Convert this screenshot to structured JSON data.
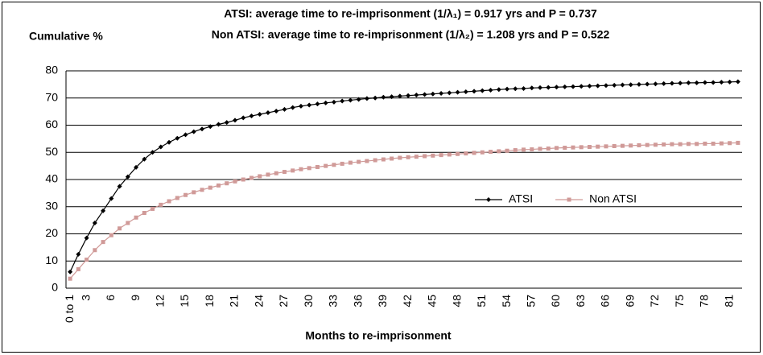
{
  "chart_data": {
    "type": "line",
    "title": [
      "ATSI: average time to re-imprisonment (1/λ₁) =  0.917 yrs and P = 0.737",
      "Non ATSI: average time to re-imprisonment (1/λ₂) =  1.208 yrs and P = 0.522"
    ],
    "y_label": "Cumulative %",
    "x_label": "Months to re-imprisonment",
    "categories": [
      "0 to 1",
      null,
      3,
      null,
      null,
      6,
      null,
      null,
      9,
      null,
      null,
      12,
      null,
      null,
      15,
      null,
      null,
      18,
      null,
      null,
      21,
      null,
      null,
      24,
      null,
      null,
      27,
      null,
      null,
      30,
      null,
      null,
      33,
      null,
      null,
      36,
      null,
      null,
      39,
      null,
      null,
      42,
      null,
      null,
      45,
      null,
      null,
      48,
      null,
      null,
      51,
      null,
      null,
      54,
      null,
      null,
      57,
      null,
      null,
      60,
      null,
      null,
      63,
      null,
      null,
      66,
      null,
      null,
      69,
      null,
      null,
      72,
      null,
      null,
      75,
      null,
      null,
      78,
      null,
      null,
      81,
      null
    ],
    "series": [
      {
        "name": "ATSI",
        "color": "#000000",
        "marker": "diamond",
        "values": [
          6,
          12.5,
          18.5,
          24,
          28.5,
          33,
          37.5,
          41,
          44.5,
          47.5,
          50,
          52,
          53.7,
          55.2,
          56.5,
          57.6,
          58.6,
          59.5,
          60.3,
          61,
          61.8,
          62.7,
          63.4,
          64,
          64.6,
          65.2,
          65.8,
          66.5,
          67,
          67.4,
          67.8,
          68.2,
          68.5,
          68.9,
          69.2,
          69.5,
          69.8,
          70,
          70.3,
          70.5,
          70.7,
          70.9,
          71.1,
          71.3,
          71.5,
          71.7,
          71.9,
          72.1,
          72.3,
          72.5,
          72.7,
          72.9,
          73.1,
          73.3,
          73.4,
          73.5,
          73.7,
          73.8,
          73.9,
          74,
          74.1,
          74.2,
          74.3,
          74.4,
          74.5,
          74.6,
          74.7,
          74.8,
          74.9,
          75,
          75.1,
          75.2,
          75.3,
          75.4,
          75.5,
          75.6,
          75.6,
          75.7,
          75.7,
          75.8,
          75.9,
          76
        ]
      },
      {
        "name": "Non ATSI",
        "color": "#d09a98",
        "marker": "square",
        "values": [
          3.5,
          7,
          10.5,
          14,
          17,
          19.5,
          22,
          24,
          26,
          27.7,
          29.2,
          30.7,
          32,
          33.2,
          34.3,
          35.3,
          36.2,
          37,
          37.8,
          38.6,
          39.3,
          40,
          40.6,
          41.2,
          41.8,
          42.3,
          42.8,
          43.3,
          43.8,
          44.2,
          44.6,
          45,
          45.4,
          45.8,
          46.2,
          46.5,
          46.8,
          47.1,
          47.4,
          47.7,
          48,
          48.2,
          48.4,
          48.6,
          48.8,
          49,
          49.2,
          49.4,
          49.6,
          49.8,
          50,
          50.2,
          50.4,
          50.6,
          50.8,
          51,
          51.1,
          51.3,
          51.4,
          51.6,
          51.7,
          51.8,
          51.9,
          52,
          52.1,
          52.2,
          52.3,
          52.4,
          52.5,
          52.6,
          52.7,
          52.8,
          52.9,
          53,
          53,
          53.1,
          53.1,
          53.2,
          53.2,
          53.3,
          53.4,
          53.5
        ]
      }
    ],
    "ylim": [
      0,
      80
    ],
    "yticks": [
      0,
      10,
      20,
      30,
      40,
      50,
      60,
      70,
      80
    ],
    "grid": true,
    "legend": "center"
  }
}
